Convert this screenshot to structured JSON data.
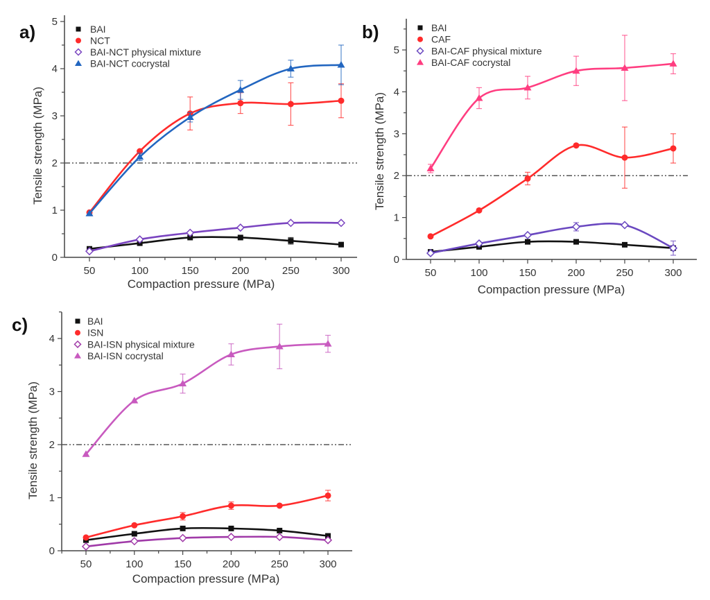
{
  "chart_data": [
    {
      "type": "line",
      "panel_label": "a)",
      "xlabel": "Compaction pressure (MPa)",
      "ylabel": "Tensile strength (MPa)",
      "x": [
        50,
        100,
        150,
        200,
        250,
        300
      ],
      "xticks": [
        "50",
        "100",
        "150",
        "200",
        "250",
        "300"
      ],
      "yticks": [
        "0",
        "1",
        "2",
        "3",
        "4",
        "5"
      ],
      "ylim": [
        0,
        5
      ],
      "reference_line_y": 2,
      "legend_position": "top-left",
      "series": [
        {
          "name": "BAI",
          "marker": "square",
          "color": "#111111",
          "values": [
            0.18,
            0.3,
            0.42,
            0.42,
            0.35,
            0.27
          ],
          "errors": [
            0.04,
            0.05,
            0.04,
            0.04,
            0.07,
            0.03
          ]
        },
        {
          "name": "NCT",
          "marker": "circle",
          "color": "#ff2b2b",
          "values": [
            0.95,
            2.25,
            3.05,
            3.27,
            3.25,
            3.32
          ],
          "errors": [
            0.03,
            0.05,
            0.35,
            0.22,
            0.45,
            0.36
          ]
        },
        {
          "name": "BAI-NCT physical mixture",
          "marker": "diamond-open",
          "color": "#7a44c0",
          "values": [
            0.13,
            0.38,
            0.52,
            0.63,
            0.73,
            0.73
          ],
          "errors": [
            0.02,
            0.03,
            0.03,
            0.03,
            0.03,
            0.02
          ]
        },
        {
          "name": "BAI-NCT cocrystal",
          "marker": "triangle",
          "color": "#2266c0",
          "values": [
            0.93,
            2.13,
            2.97,
            3.55,
            4.0,
            4.08
          ],
          "errors": [
            0.04,
            0.08,
            0.1,
            0.2,
            0.18,
            0.42
          ]
        }
      ]
    },
    {
      "type": "line",
      "panel_label": "b)",
      "xlabel": "Compaction pressure (MPa)",
      "ylabel": "Tensile strength (MPa)",
      "x": [
        50,
        100,
        150,
        200,
        250,
        300
      ],
      "xticks": [
        "50",
        "100",
        "150",
        "200",
        "250",
        "300"
      ],
      "yticks": [
        "0",
        "1",
        "2",
        "3",
        "4",
        "5"
      ],
      "ylim": [
        0,
        5.6
      ],
      "reference_line_y": 2,
      "legend_position": "top-left",
      "series": [
        {
          "name": "BAI",
          "marker": "square",
          "color": "#111111",
          "values": [
            0.18,
            0.3,
            0.42,
            0.42,
            0.35,
            0.27
          ],
          "errors": [
            0.03,
            0.04,
            0.03,
            0.03,
            0.06,
            0.03
          ]
        },
        {
          "name": "CAF",
          "marker": "circle",
          "color": "#ff2b2b",
          "values": [
            0.55,
            1.17,
            1.93,
            2.72,
            2.43,
            2.65
          ],
          "errors": [
            0.03,
            0.04,
            0.15,
            0.04,
            0.73,
            0.35
          ]
        },
        {
          "name": "BAI-CAF physical mixture",
          "marker": "diamond-open",
          "color": "#6a48c0",
          "values": [
            0.15,
            0.38,
            0.58,
            0.78,
            0.82,
            0.27
          ],
          "errors": [
            0.02,
            0.03,
            0.04,
            0.1,
            0.04,
            0.17
          ]
        },
        {
          "name": "BAI-CAF cocrystal",
          "marker": "triangle",
          "color": "#ff3d80",
          "values": [
            2.17,
            3.85,
            4.1,
            4.5,
            4.57,
            4.67
          ],
          "errors": [
            0.1,
            0.25,
            0.27,
            0.35,
            0.78,
            0.24
          ]
        }
      ]
    },
    {
      "type": "line",
      "panel_label": "c)",
      "xlabel": "Compaction pressure (MPa)",
      "ylabel": "Tensile strength (MPa)",
      "x": [
        50,
        100,
        150,
        200,
        250,
        300
      ],
      "xticks": [
        "50",
        "100",
        "150",
        "200",
        "250",
        "300"
      ],
      "yticks": [
        "0",
        "1",
        "2",
        "3",
        "4"
      ],
      "ylim": [
        0,
        4.5
      ],
      "reference_line_y": 2,
      "legend_position": "top-left",
      "series": [
        {
          "name": "BAI",
          "marker": "square",
          "color": "#111111",
          "values": [
            0.2,
            0.32,
            0.42,
            0.42,
            0.38,
            0.28
          ],
          "errors": [
            0.03,
            0.05,
            0.03,
            0.04,
            0.05,
            0.03
          ]
        },
        {
          "name": "ISN",
          "marker": "circle",
          "color": "#ff2b2b",
          "values": [
            0.25,
            0.48,
            0.65,
            0.85,
            0.85,
            1.04
          ],
          "errors": [
            0.02,
            0.05,
            0.07,
            0.07,
            0.06,
            0.1
          ]
        },
        {
          "name": "BAI-ISN physical mixture",
          "marker": "diamond-open",
          "color": "#a03aa8",
          "values": [
            0.08,
            0.18,
            0.24,
            0.26,
            0.26,
            0.2
          ],
          "errors": [
            0.02,
            0.02,
            0.02,
            0.02,
            0.02,
            0.02
          ]
        },
        {
          "name": "BAI-ISN cocrystal",
          "marker": "triangle",
          "color": "#c85abf",
          "values": [
            1.82,
            2.83,
            3.15,
            3.7,
            3.85,
            3.9
          ],
          "errors": [
            0.05,
            0.05,
            0.18,
            0.2,
            0.42,
            0.16
          ]
        }
      ]
    }
  ]
}
